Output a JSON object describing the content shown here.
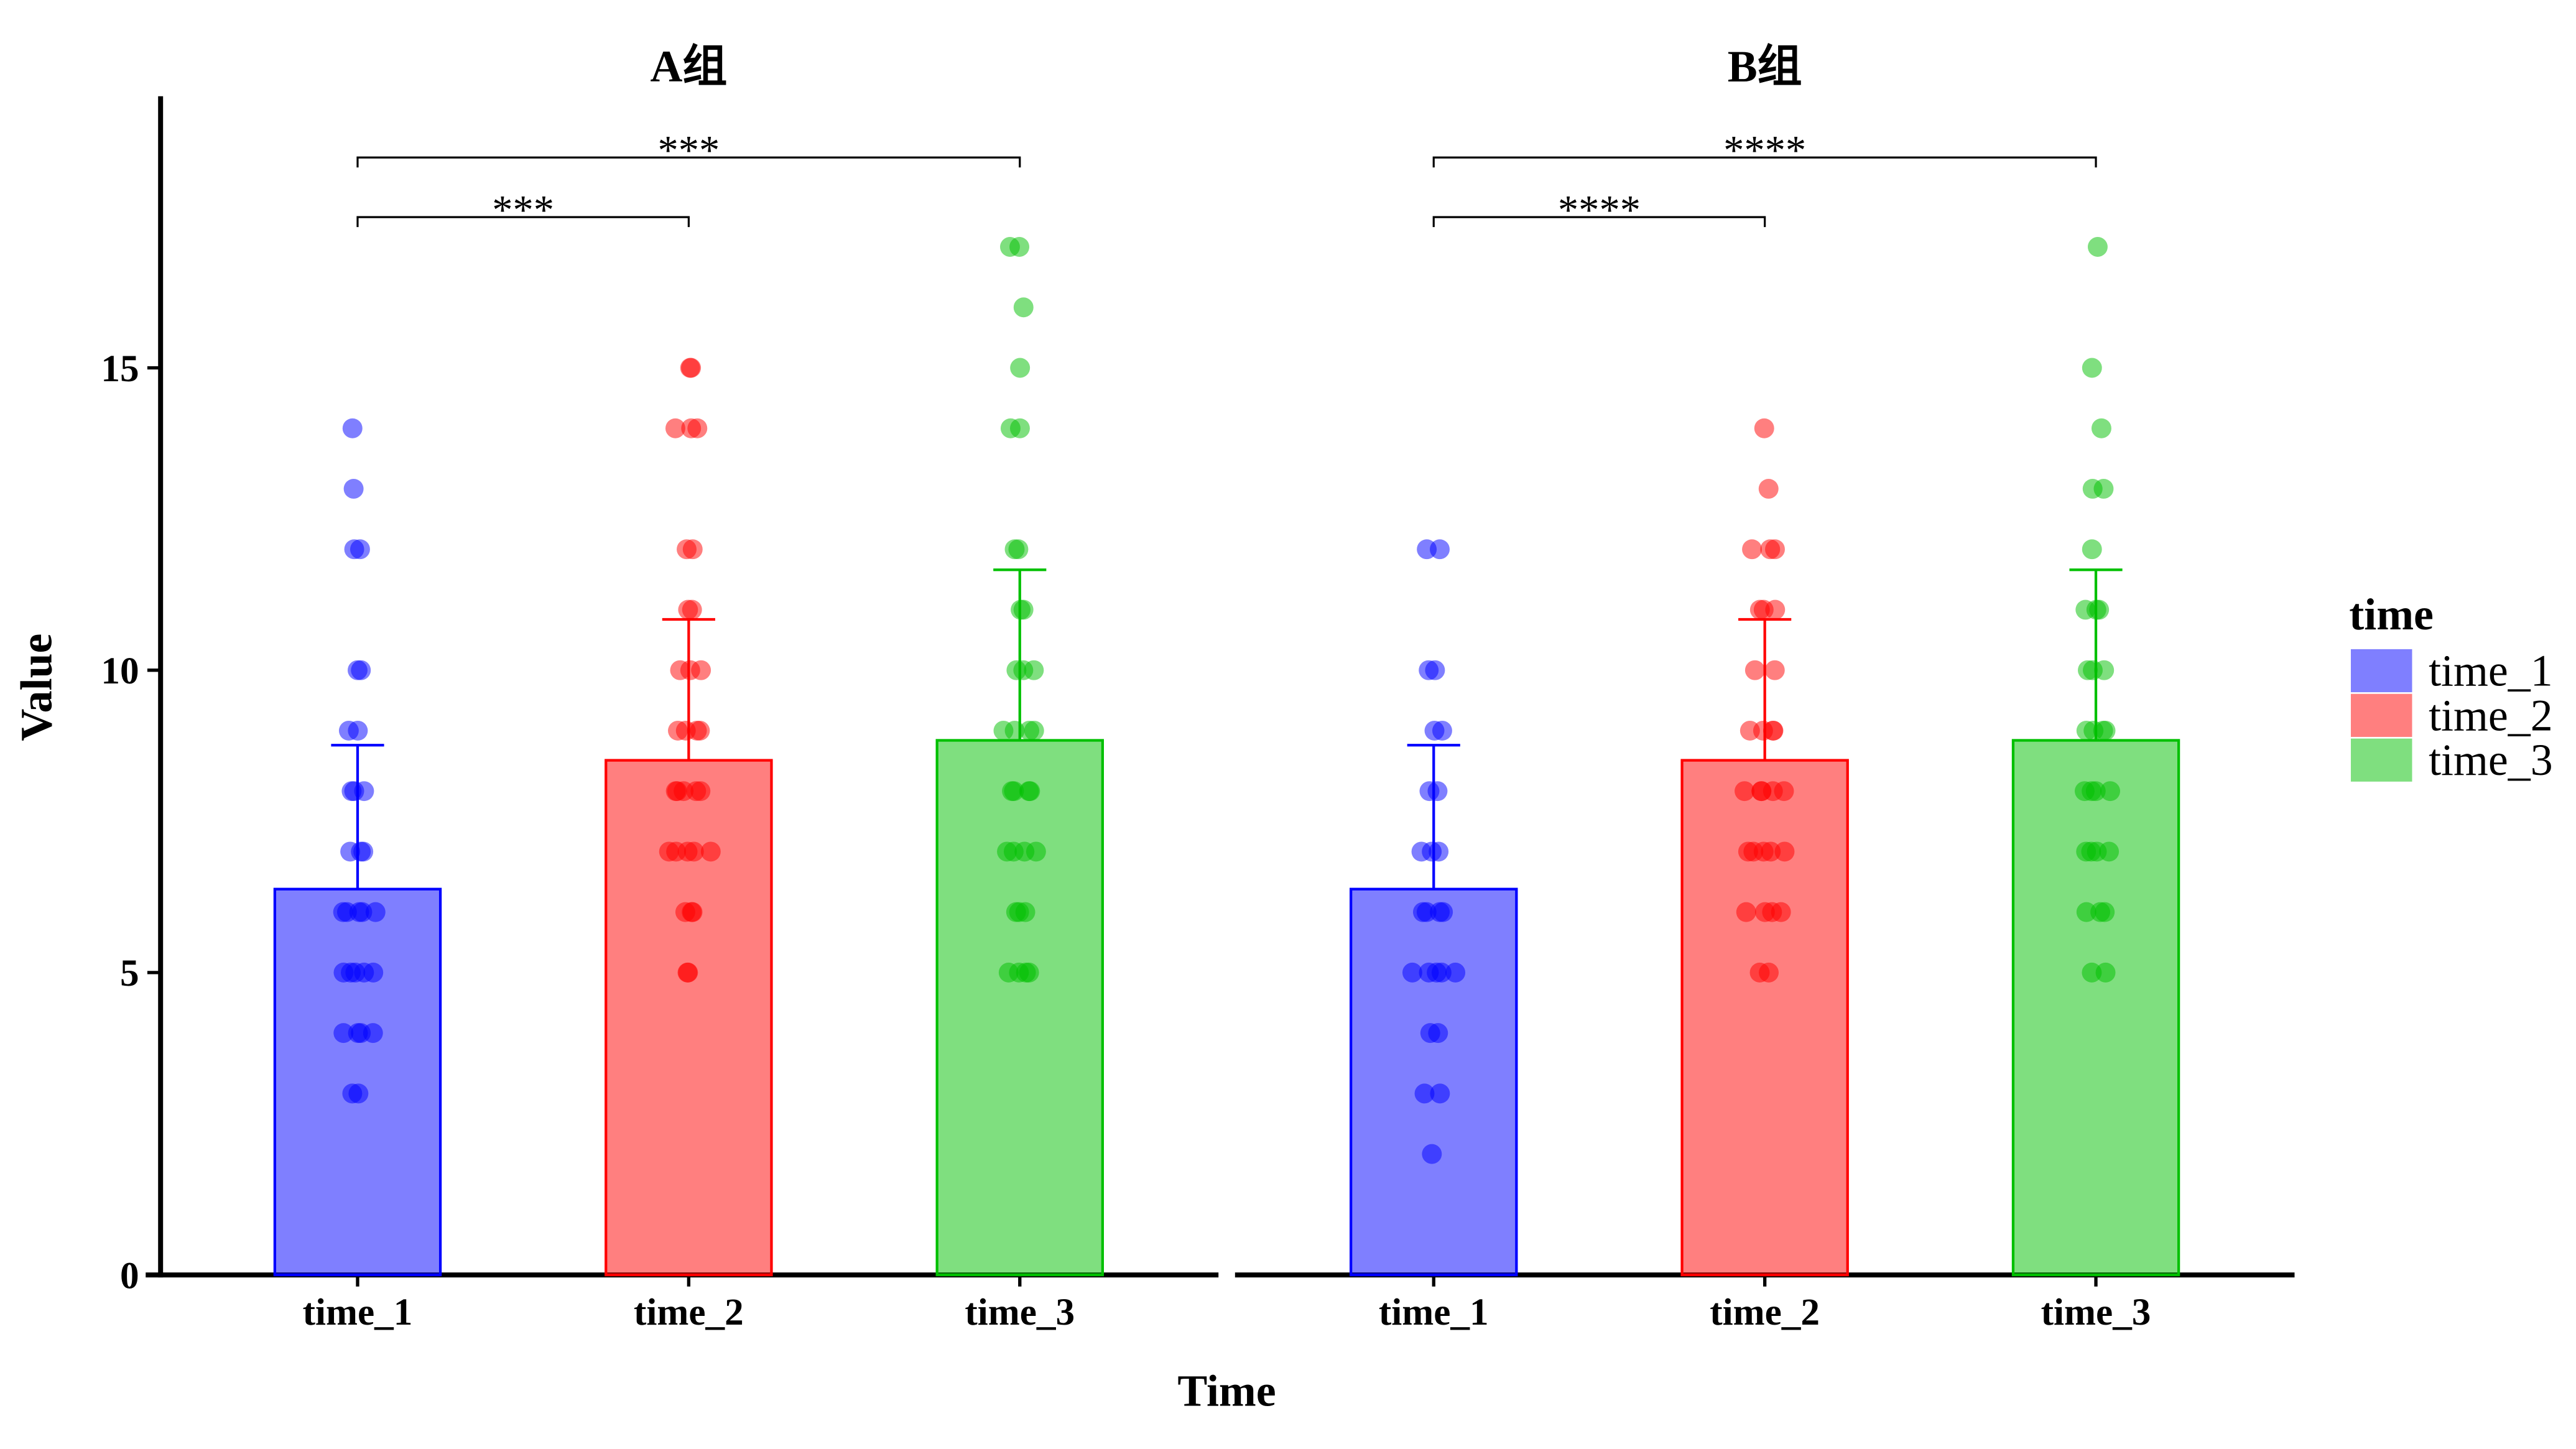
{
  "chart_data": {
    "type": "bar",
    "xlabel": "Time",
    "ylabel": "Value",
    "ylim": [
      0,
      19.5
    ],
    "yticks": [
      0,
      5,
      10,
      15
    ],
    "categories": [
      "time_1",
      "time_2",
      "time_3"
    ],
    "colors": {
      "time_1": "#0000FF",
      "time_2": "#FF0000",
      "time_3": "#00C000"
    },
    "legend": {
      "title": "time",
      "position": "right",
      "entries": [
        "time_1",
        "time_2",
        "time_3"
      ]
    },
    "facets": [
      {
        "title": "A组",
        "series": [
          {
            "category": "time_1",
            "mean": 6.38,
            "sd": 2.38,
            "points": [
              14,
              13,
              12,
              12,
              10,
              10,
              9,
              9,
              8,
              8,
              8,
              7,
              7,
              7,
              6,
              6,
              6,
              6,
              6,
              5,
              5,
              5,
              5,
              5,
              4,
              4,
              4,
              4,
              3,
              3
            ]
          },
          {
            "category": "time_2",
            "mean": 8.51,
            "sd": 2.33,
            "points": [
              15,
              15,
              14,
              14,
              14,
              12,
              12,
              11,
              11,
              10,
              10,
              10,
              9,
              9,
              9,
              9,
              8,
              8,
              8,
              8,
              8,
              7,
              7,
              7,
              7,
              7,
              6,
              6,
              6,
              5,
              5
            ]
          },
          {
            "category": "time_3",
            "mean": 8.84,
            "sd": 2.82,
            "points": [
              17,
              17,
              16,
              15,
              14,
              14,
              12,
              12,
              11,
              11,
              10,
              10,
              10,
              9,
              9,
              9,
              9,
              8,
              8,
              8,
              8,
              7,
              7,
              7,
              7,
              6,
              6,
              6,
              5,
              5,
              5,
              5
            ]
          }
        ],
        "comparisons": [
          {
            "groups": [
              "time_1",
              "time_2"
            ],
            "label": "***"
          },
          {
            "groups": [
              "time_1",
              "time_3"
            ],
            "label": "***"
          }
        ]
      },
      {
        "title": "B组",
        "series": [
          {
            "category": "time_1",
            "mean": 6.38,
            "sd": 2.38,
            "points": [
              12,
              12,
              10,
              10,
              9,
              9,
              8,
              8,
              7,
              7,
              7,
              6,
              6,
              6,
              6,
              5,
              5,
              5,
              5,
              5,
              4,
              4,
              3,
              3,
              2
            ]
          },
          {
            "category": "time_2",
            "mean": 8.51,
            "sd": 2.33,
            "points": [
              14,
              13,
              12,
              12,
              12,
              11,
              11,
              11,
              10,
              10,
              9,
              9,
              9,
              9,
              8,
              8,
              8,
              8,
              8,
              7,
              7,
              7,
              7,
              7,
              6,
              6,
              6,
              6,
              5,
              5
            ]
          },
          {
            "category": "time_3",
            "mean": 8.84,
            "sd": 2.82,
            "points": [
              17,
              15,
              14,
              13,
              13,
              12,
              11,
              11,
              11,
              10,
              10,
              10,
              9,
              9,
              9,
              9,
              8,
              8,
              8,
              8,
              7,
              7,
              7,
              7,
              6,
              6,
              6,
              5,
              5
            ]
          }
        ],
        "comparisons": [
          {
            "groups": [
              "time_1",
              "time_2"
            ],
            "label": "****"
          },
          {
            "groups": [
              "time_1",
              "time_3"
            ],
            "label": "****"
          }
        ]
      }
    ]
  }
}
